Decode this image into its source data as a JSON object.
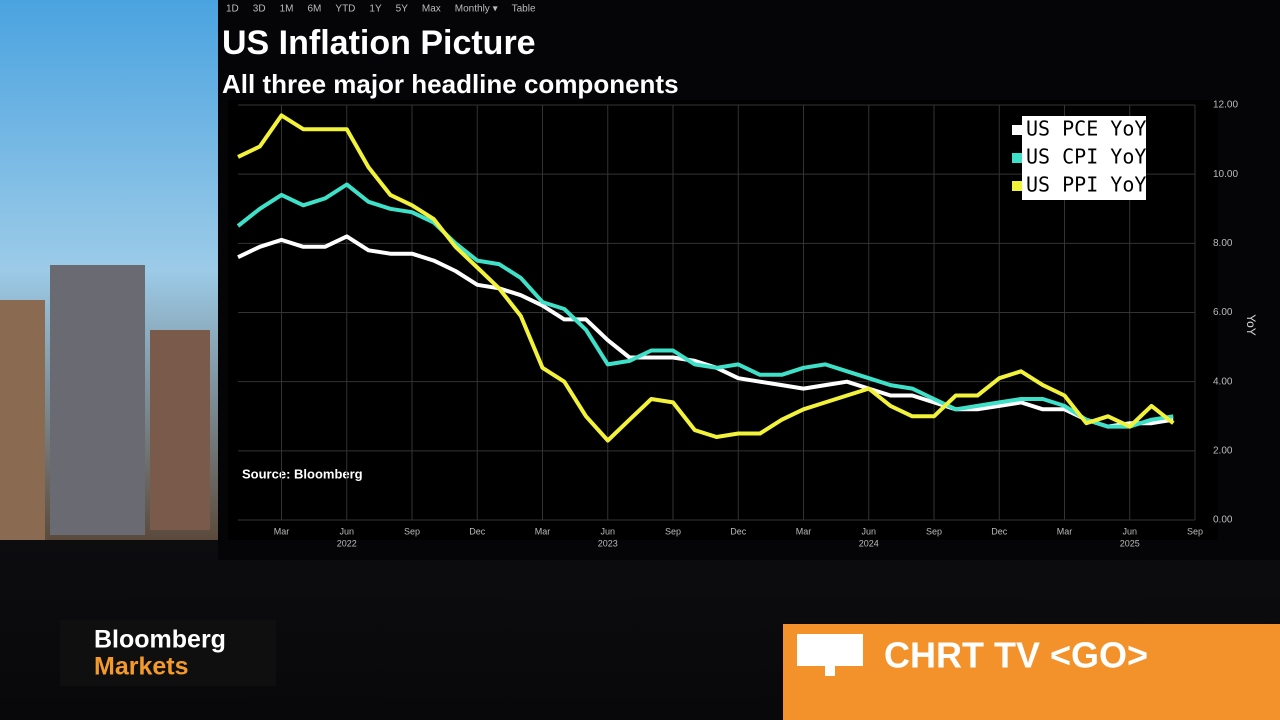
{
  "toolbar": [
    "1D",
    "3D",
    "1M",
    "6M",
    "YTD",
    "1Y",
    "5Y",
    "Max",
    "Monthly ▾",
    "Table"
  ],
  "chart_data": {
    "type": "line",
    "title": "US Inflation Picture",
    "subtitle": "All three major headline components",
    "source": "Source: Bloomberg",
    "y_axis_label": "YoY",
    "categories": [
      null,
      null,
      "Mar",
      null,
      null,
      "Jun",
      null,
      null,
      "Sep",
      null,
      null,
      "Dec",
      null,
      null,
      "Mar",
      null,
      null,
      "Jun",
      null,
      null,
      "Sep",
      null,
      null,
      "Dec",
      null,
      null,
      "Mar",
      null,
      null,
      "Jun",
      null,
      null,
      "Sep",
      null,
      null,
      "Dec",
      null,
      null,
      "Mar",
      null,
      null,
      "Jun",
      null,
      null,
      "Sep"
    ],
    "years": [
      null,
      null,
      null,
      null,
      null,
      "2022",
      null,
      null,
      null,
      null,
      null,
      null,
      null,
      null,
      null,
      null,
      null,
      "2023",
      null,
      null,
      null,
      null,
      null,
      null,
      null,
      null,
      null,
      null,
      null,
      "2024",
      null,
      null,
      null,
      null,
      null,
      null,
      null,
      null,
      null,
      null,
      null,
      "2025",
      null,
      null,
      null
    ],
    "series": [
      {
        "name": "US PCE YoY",
        "color": "#ffffff",
        "values": [
          7.6,
          7.9,
          8.1,
          7.9,
          7.9,
          8.2,
          7.8,
          7.7,
          7.7,
          7.5,
          7.2,
          6.8,
          6.7,
          6.5,
          6.2,
          5.8,
          5.8,
          5.2,
          4.7,
          4.7,
          4.7,
          4.6,
          4.4,
          4.1,
          4.0,
          3.9,
          3.8,
          3.9,
          4.0,
          3.8,
          3.6,
          3.6,
          3.4,
          3.2,
          3.2,
          3.3,
          3.4,
          3.2,
          3.2,
          2.9,
          2.7,
          2.8,
          2.8,
          2.9,
          null
        ]
      },
      {
        "name": "US CPI YoY",
        "color": "#3fe0c8",
        "values": [
          8.5,
          9.0,
          9.4,
          9.1,
          9.3,
          9.7,
          9.2,
          9.0,
          8.9,
          8.6,
          8.0,
          7.5,
          7.4,
          7.0,
          6.3,
          6.1,
          5.5,
          4.5,
          4.6,
          4.9,
          4.9,
          4.5,
          4.4,
          4.5,
          4.2,
          4.2,
          4.4,
          4.5,
          4.3,
          4.1,
          3.9,
          3.8,
          3.5,
          3.2,
          3.3,
          3.4,
          3.5,
          3.5,
          3.3,
          2.9,
          2.7,
          2.7,
          2.9,
          3.0,
          null
        ]
      },
      {
        "name": "US PPI YoY",
        "color": "#f2f23a",
        "values": [
          10.5,
          10.8,
          11.7,
          11.3,
          11.3,
          11.3,
          10.2,
          9.4,
          9.1,
          8.7,
          7.9,
          7.3,
          6.7,
          5.9,
          4.4,
          4.0,
          3.0,
          2.3,
          2.9,
          3.5,
          3.4,
          2.6,
          2.4,
          2.5,
          2.5,
          2.9,
          3.2,
          3.4,
          3.6,
          3.8,
          3.3,
          3.0,
          3.0,
          3.6,
          3.6,
          4.1,
          4.3,
          3.9,
          3.6,
          2.8,
          3.0,
          2.7,
          3.3,
          2.8,
          null
        ]
      }
    ],
    "ylim": [
      0,
      12
    ],
    "yticks": [
      {
        "value": 0,
        "label": "0.00"
      },
      {
        "value": 2,
        "label": "2.00"
      },
      {
        "value": 4,
        "label": "4.00"
      },
      {
        "value": 6,
        "label": "6.00"
      },
      {
        "value": 8,
        "label": "8.00"
      },
      {
        "value": 10,
        "label": "10.00"
      },
      {
        "value": 12,
        "label": "12.00"
      }
    ],
    "grid": true,
    "legend": "top-right"
  },
  "branding": {
    "line1": "Bloomberg",
    "line2": "Markets"
  },
  "banner": "CHRT TV <GO>"
}
